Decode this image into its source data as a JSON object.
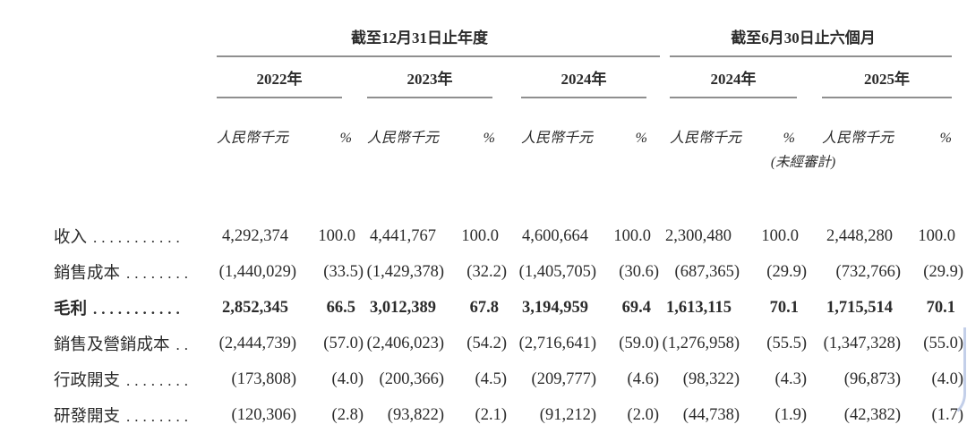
{
  "page": {
    "background": "#ffffff",
    "text_color": "#2b2b2b",
    "rule_color": "#8f8f8f",
    "corner_accent_color": "#b9c7e6"
  },
  "table": {
    "period_groups": [
      {
        "title": "截至12月31日止年度",
        "years": [
          "2022年",
          "2023年",
          "2024年"
        ]
      },
      {
        "title": "截至6月30日止六個月",
        "years": [
          "2024年",
          "2025年"
        ]
      }
    ],
    "subheaders": {
      "amount": "人民幣千元",
      "percent": "%",
      "unaudited_note": "(未經審計)"
    },
    "rows": [
      {
        "label": "收入",
        "leader": "...........",
        "bold": false,
        "values": [
          "4,292,374",
          "100.0",
          "4,441,767",
          "100.0",
          "4,600,664",
          "100.0",
          "2,300,480",
          "100.0",
          "2,448,280",
          "100.0"
        ]
      },
      {
        "label": "銷售成本",
        "leader": "........",
        "bold": false,
        "values": [
          "(1,440,029)",
          "(33.5)",
          "(1,429,378)",
          "(32.2)",
          "(1,405,705)",
          "(30.6)",
          "(687,365)",
          "(29.9)",
          "(732,766)",
          "(29.9)"
        ]
      },
      {
        "label": "毛利",
        "leader": "...........",
        "bold": true,
        "values": [
          "2,852,345",
          "66.5",
          "3,012,389",
          "67.8",
          "3,194,959",
          "69.4",
          "1,613,115",
          "70.1",
          "1,715,514",
          "70.1"
        ]
      },
      {
        "label": "銷售及營銷成本",
        "leader": "..",
        "bold": false,
        "values": [
          "(2,444,739)",
          "(57.0)",
          "(2,406,023)",
          "(54.2)",
          "(2,716,641)",
          "(59.0)",
          "(1,276,958)",
          "(55.5)",
          "(1,347,328)",
          "(55.0)"
        ]
      },
      {
        "label": "行政開支",
        "leader": "........",
        "bold": false,
        "values": [
          "(173,808)",
          "(4.0)",
          "(200,366)",
          "(4.5)",
          "(209,777)",
          "(4.6)",
          "(98,322)",
          "(4.3)",
          "(96,873)",
          "(4.0)"
        ]
      },
      {
        "label": "研發開支",
        "leader": "........",
        "bold": false,
        "values": [
          "(120,306)",
          "(2.8)",
          "(93,822)",
          "(2.1)",
          "(91,212)",
          "(2.0)",
          "(44,738)",
          "(1.9)",
          "(42,382)",
          "(1.7)"
        ]
      }
    ]
  }
}
